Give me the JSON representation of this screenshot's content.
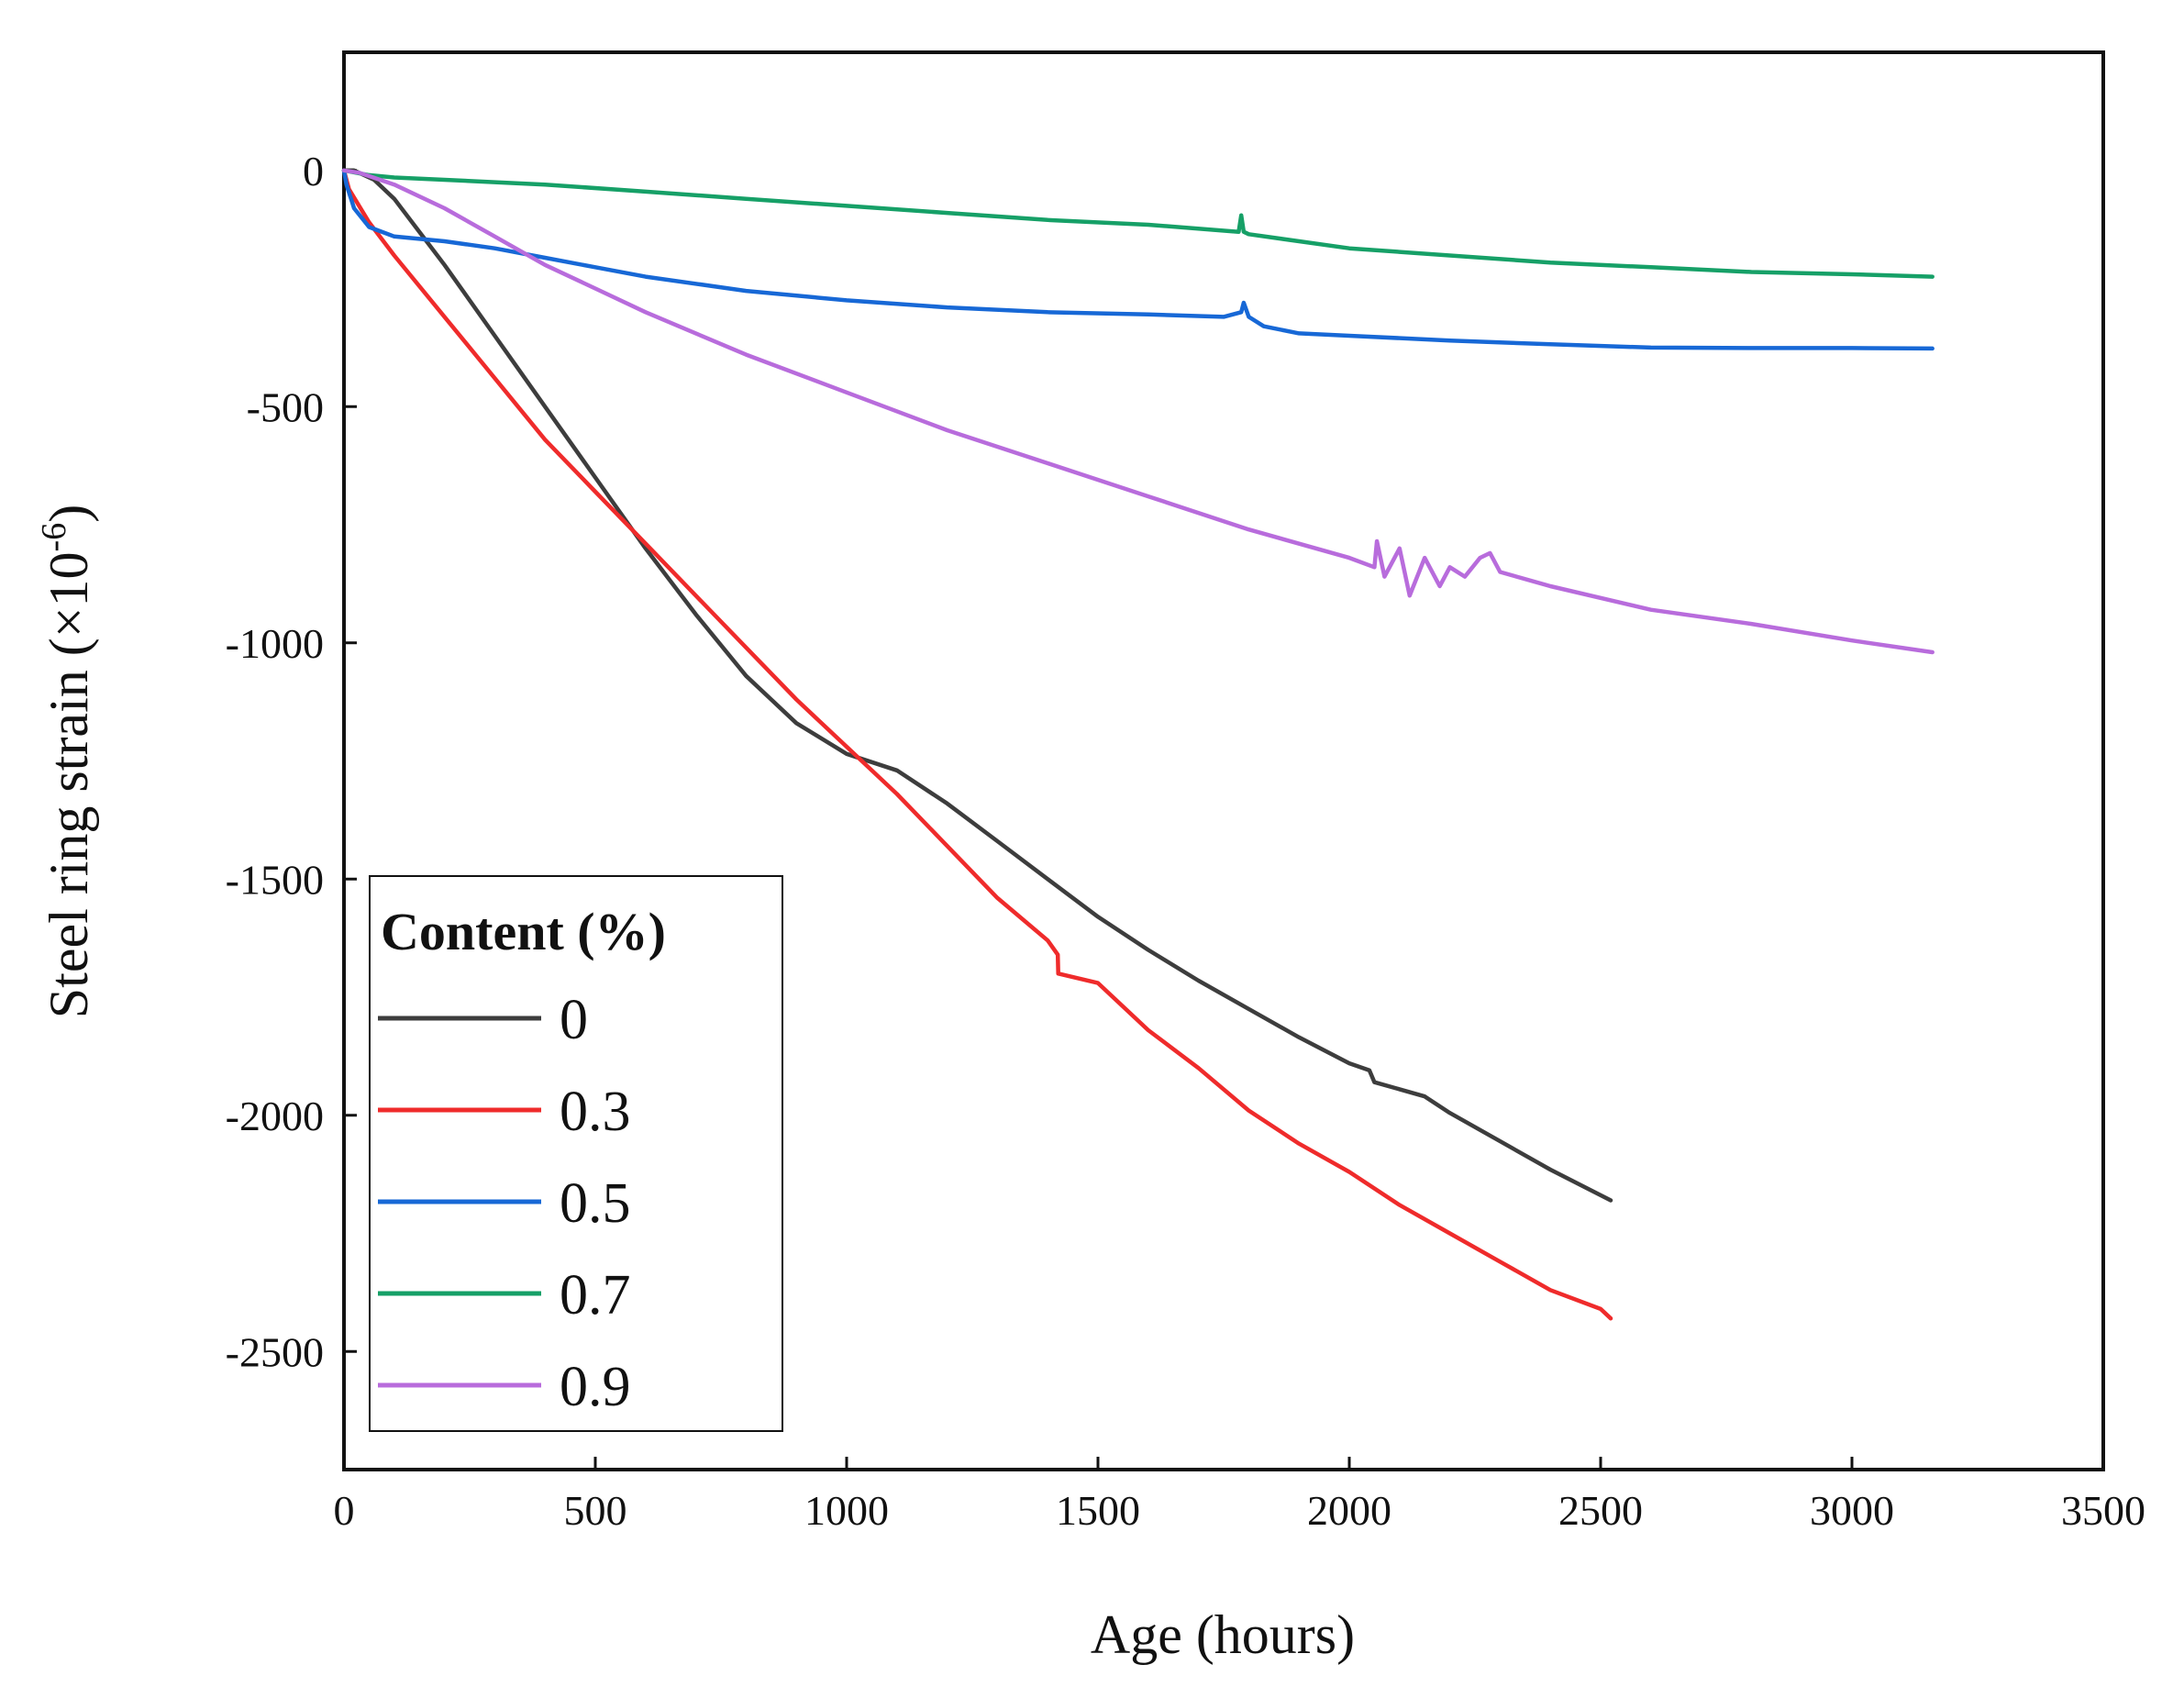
{
  "chart_data": {
    "type": "line",
    "title": "",
    "xlabel": "Age (hours)",
    "ylabel": "Steel ring strain (×10",
    "ylabel_exponent": "-6",
    "ylabel_close": ")",
    "xlim": [
      0,
      3500
    ],
    "ylim": [
      -2750,
      250
    ],
    "xticks": [
      0,
      500,
      1000,
      1500,
      2000,
      2500,
      3000,
      3500
    ],
    "xtick_labels": [
      "0",
      "500",
      "1000",
      "1500",
      "2000",
      "2500",
      "3000",
      "3500"
    ],
    "yticks": [
      0,
      -500,
      -1000,
      -1500,
      -2000,
      -2500
    ],
    "ytick_labels": [
      "0",
      "-500",
      "-1000",
      "-1500",
      "-2000",
      "-2500"
    ],
    "grid": false,
    "legend_title": "Content (%)",
    "legend_position": "bottom-left",
    "series": [
      {
        "name": "0",
        "color": "#3d3d3d",
        "x": [
          0,
          20,
          60,
          100,
          200,
          300,
          400,
          500,
          600,
          700,
          800,
          900,
          1000,
          1100,
          1200,
          1300,
          1400,
          1500,
          1600,
          1700,
          1800,
          1900,
          2000,
          2040,
          2050,
          2100,
          2150,
          2200,
          2300,
          2400,
          2520
        ],
        "y": [
          0,
          0,
          -20,
          -60,
          -200,
          -350,
          -500,
          -650,
          -800,
          -940,
          -1070,
          -1170,
          -1235,
          -1270,
          -1340,
          -1420,
          -1500,
          -1580,
          -1650,
          -1715,
          -1775,
          -1835,
          -1890,
          -1905,
          -1930,
          -1945,
          -1960,
          -1995,
          -2055,
          -2115,
          -2180
        ]
      },
      {
        "name": "0.3",
        "color": "#ef2b2b",
        "x": [
          0,
          10,
          50,
          100,
          200,
          300,
          400,
          500,
          600,
          700,
          800,
          900,
          1000,
          1100,
          1200,
          1300,
          1400,
          1420,
          1421,
          1500,
          1600,
          1700,
          1800,
          1900,
          2000,
          2100,
          2200,
          2300,
          2400,
          2500,
          2520
        ],
        "y": [
          0,
          -40,
          -110,
          -180,
          -310,
          -440,
          -570,
          -680,
          -790,
          -900,
          -1010,
          -1120,
          -1220,
          -1320,
          -1430,
          -1540,
          -1630,
          -1660,
          -1700,
          -1720,
          -1820,
          -1900,
          -1990,
          -2060,
          -2120,
          -2190,
          -2250,
          -2310,
          -2370,
          -2410,
          -2430
        ]
      },
      {
        "name": "0.5",
        "color": "#1768d6",
        "x": [
          0,
          5,
          20,
          50,
          100,
          200,
          300,
          400,
          500,
          600,
          800,
          1000,
          1200,
          1400,
          1600,
          1750,
          1785,
          1790,
          1800,
          1830,
          1900,
          2000,
          2200,
          2400,
          2600,
          2800,
          3000,
          3160
        ],
        "y": [
          0,
          -30,
          -80,
          -120,
          -140,
          -150,
          -165,
          -185,
          -205,
          -225,
          -255,
          -275,
          -290,
          -300,
          -305,
          -310,
          -300,
          -280,
          -310,
          -330,
          -345,
          -350,
          -360,
          -368,
          -375,
          -376,
          -376,
          -377
        ]
      },
      {
        "name": "0.7",
        "color": "#16a067",
        "x": [
          0,
          50,
          100,
          200,
          400,
          600,
          800,
          1000,
          1200,
          1400,
          1600,
          1780,
          1785,
          1790,
          1800,
          1900,
          2000,
          2200,
          2400,
          2600,
          2800,
          3000,
          3160
        ],
        "y": [
          0,
          -10,
          -15,
          -20,
          -30,
          -45,
          -60,
          -75,
          -90,
          -105,
          -115,
          -130,
          -95,
          -130,
          -135,
          -150,
          -165,
          -180,
          -195,
          -205,
          -215,
          -220,
          -225
        ]
      },
      {
        "name": "0.9",
        "color": "#b86cdc",
        "x": [
          0,
          30,
          100,
          200,
          300,
          400,
          500,
          600,
          800,
          1000,
          1200,
          1400,
          1600,
          1800,
          2000,
          2050,
          2055,
          2070,
          2100,
          2120,
          2150,
          2180,
          2200,
          2230,
          2260,
          2280,
          2300,
          2400,
          2600,
          2800,
          3000,
          3160
        ],
        "y": [
          0,
          -5,
          -30,
          -80,
          -140,
          -200,
          -250,
          -300,
          -390,
          -470,
          -550,
          -620,
          -690,
          -760,
          -820,
          -840,
          -785,
          -860,
          -800,
          -900,
          -820,
          -880,
          -840,
          -860,
          -820,
          -810,
          -850,
          -880,
          -930,
          -960,
          -995,
          -1020
        ]
      }
    ]
  }
}
